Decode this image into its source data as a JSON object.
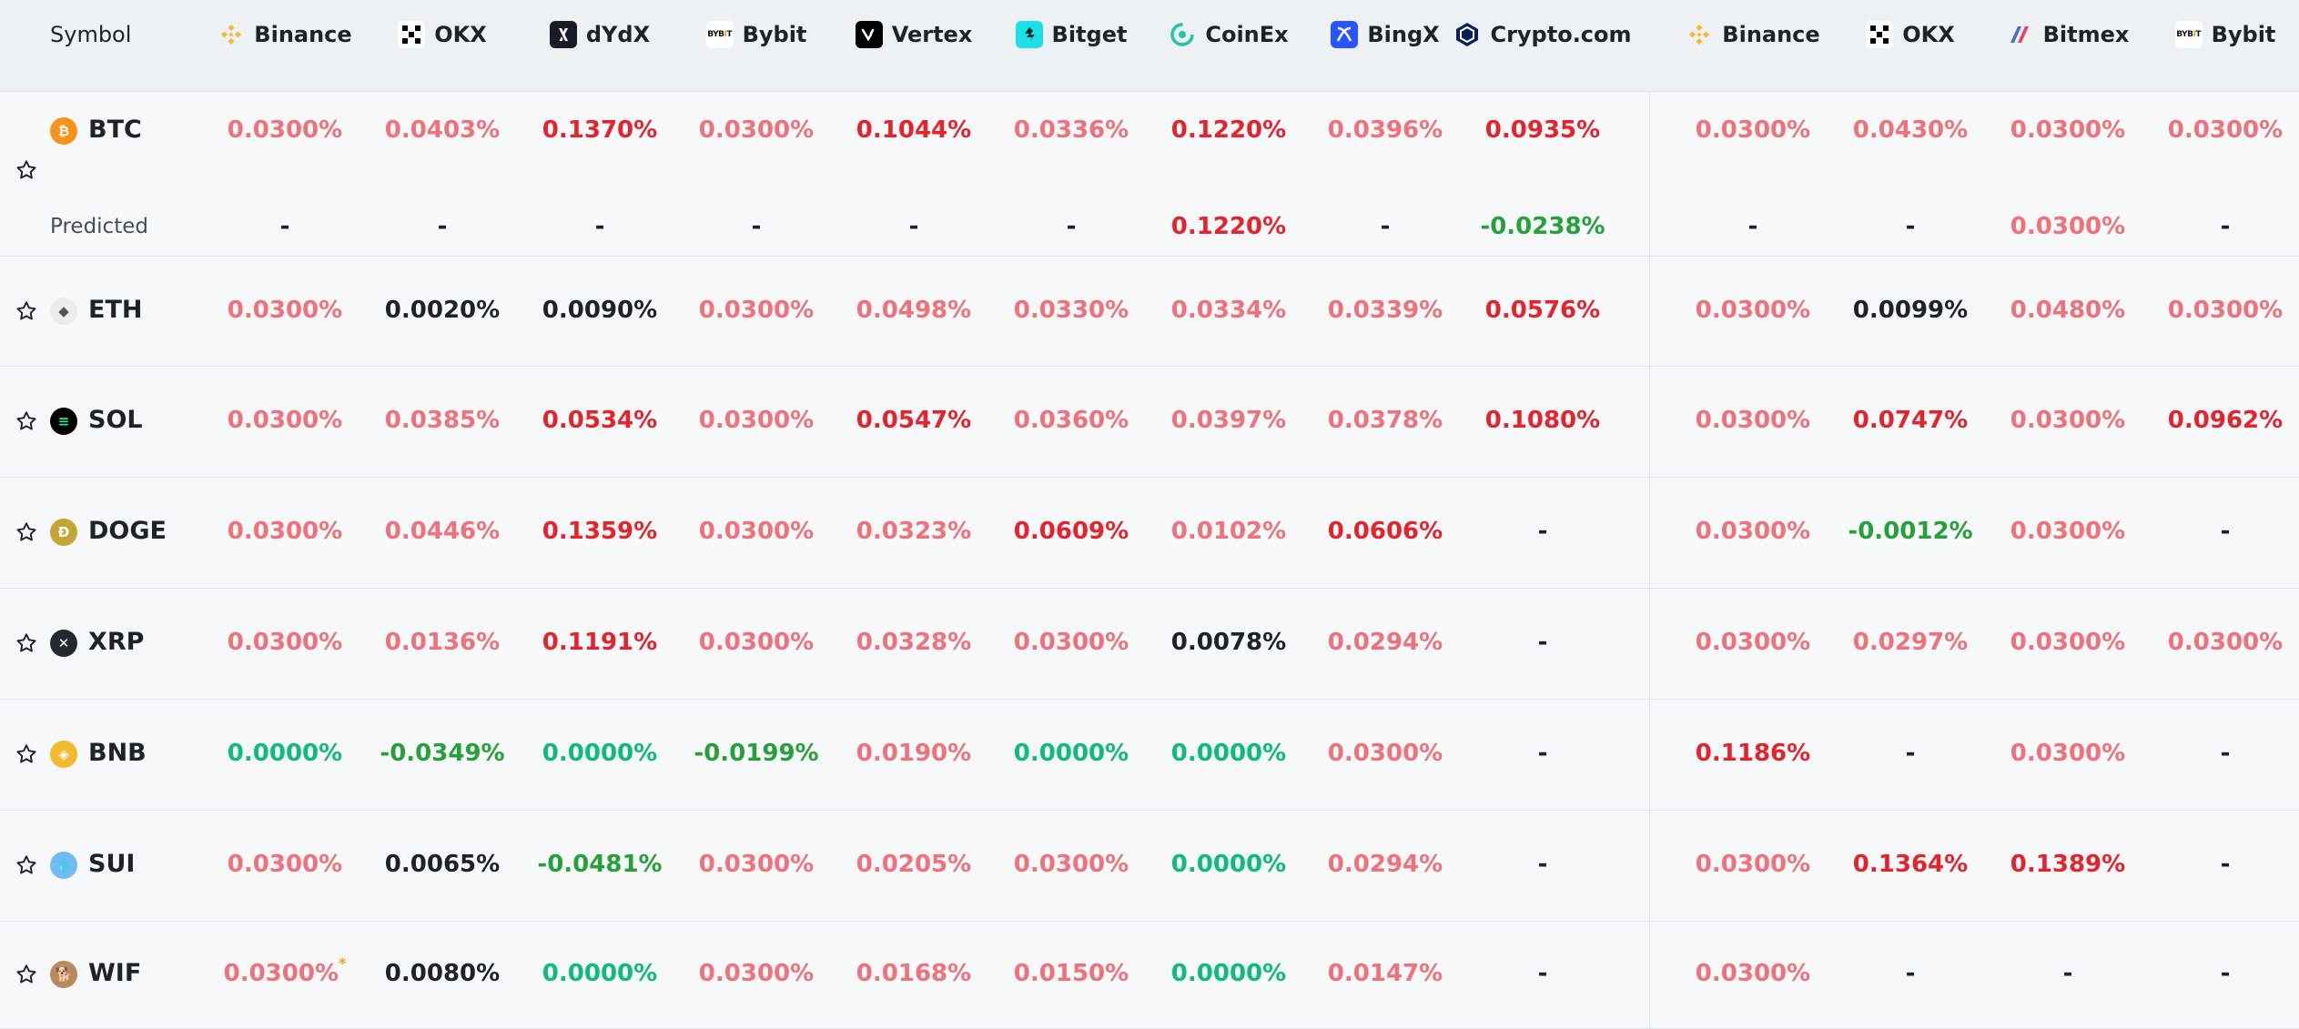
{
  "header": {
    "symbol_label": "Symbol",
    "exchanges": [
      {
        "name": "Binance",
        "icon": "binance-icon"
      },
      {
        "name": "OKX",
        "icon": "okx-icon"
      },
      {
        "name": "dYdX",
        "icon": "dydx-icon"
      },
      {
        "name": "Bybit",
        "icon": "bybit-icon"
      },
      {
        "name": "Vertex",
        "icon": "vertex-icon"
      },
      {
        "name": "Bitget",
        "icon": "bitget-icon"
      },
      {
        "name": "CoinEx",
        "icon": "coinex-icon"
      },
      {
        "name": "BingX",
        "icon": "bingx-icon"
      },
      {
        "name": "Crypto.com",
        "icon": "cryptocom-icon"
      },
      {
        "name": "Binance",
        "icon": "binance-icon"
      },
      {
        "name": "OKX",
        "icon": "okx-icon"
      },
      {
        "name": "Bitmex",
        "icon": "bitmex-icon"
      },
      {
        "name": "Bybit",
        "icon": "bybit-icon"
      }
    ]
  },
  "predicted_label": "Predicted",
  "colors": {
    "positive_light": "#f0717a",
    "positive_strong": "#e6232d",
    "negative": "#25a03a",
    "zero": "#0ebb7a",
    "neutral": "#1e2329"
  },
  "rows": [
    {
      "symbol": "BTC",
      "icon": "btc-icon",
      "values": [
        "0.0300%",
        "0.0403%",
        "0.1370%",
        "0.0300%",
        "0.1044%",
        "0.0336%",
        "0.1220%",
        "0.0396%",
        "0.0935%",
        "0.0300%",
        "0.0430%",
        "0.0300%",
        "0.0300%"
      ],
      "predicted": [
        "-",
        "-",
        "-",
        "-",
        "-",
        "-",
        "0.1220%",
        "-",
        "-0.0238%",
        "-",
        "-",
        "0.0300%",
        "-"
      ]
    },
    {
      "symbol": "ETH",
      "icon": "eth-icon",
      "values": [
        "0.0300%",
        "0.0020%",
        "0.0090%",
        "0.0300%",
        "0.0498%",
        "0.0330%",
        "0.0334%",
        "0.0339%",
        "0.0576%",
        "0.0300%",
        "0.0099%",
        "0.0480%",
        "0.0300%"
      ]
    },
    {
      "symbol": "SOL",
      "icon": "sol-icon",
      "values": [
        "0.0300%",
        "0.0385%",
        "0.0534%",
        "0.0300%",
        "0.0547%",
        "0.0360%",
        "0.0397%",
        "0.0378%",
        "0.1080%",
        "0.0300%",
        "0.0747%",
        "0.0300%",
        "0.0962%"
      ]
    },
    {
      "symbol": "DOGE",
      "icon": "doge-icon",
      "values": [
        "0.0300%",
        "0.0446%",
        "0.1359%",
        "0.0300%",
        "0.0323%",
        "0.0609%",
        "0.0102%",
        "0.0606%",
        "-",
        "0.0300%",
        "-0.0012%",
        "0.0300%",
        "-"
      ]
    },
    {
      "symbol": "XRP",
      "icon": "xrp-icon",
      "values": [
        "0.0300%",
        "0.0136%",
        "0.1191%",
        "0.0300%",
        "0.0328%",
        "0.0300%",
        "0.0078%",
        "0.0294%",
        "-",
        "0.0300%",
        "0.0297%",
        "0.0300%",
        "0.0300%"
      ]
    },
    {
      "symbol": "BNB",
      "icon": "bnb-icon",
      "values": [
        "0.0000%",
        "-0.0349%",
        "0.0000%",
        "-0.0199%",
        "0.0190%",
        "0.0000%",
        "0.0000%",
        "0.0300%",
        "-",
        "0.1186%",
        "-",
        "0.0300%",
        "-"
      ]
    },
    {
      "symbol": "SUI",
      "icon": "sui-icon",
      "values": [
        "0.0300%",
        "0.0065%",
        "-0.0481%",
        "0.0300%",
        "0.0205%",
        "0.0300%",
        "0.0000%",
        "0.0294%",
        "-",
        "0.0300%",
        "0.1364%",
        "0.1389%",
        "-"
      ]
    },
    {
      "symbol": "WIF",
      "icon": "wif-icon",
      "values": [
        "0.0300%",
        "0.0080%",
        "0.0000%",
        "0.0300%",
        "0.0168%",
        "0.0150%",
        "0.0000%",
        "0.0147%",
        "-",
        "0.0300%",
        "-",
        "-",
        "-"
      ],
      "marks": {
        "0": "*"
      }
    }
  ]
}
